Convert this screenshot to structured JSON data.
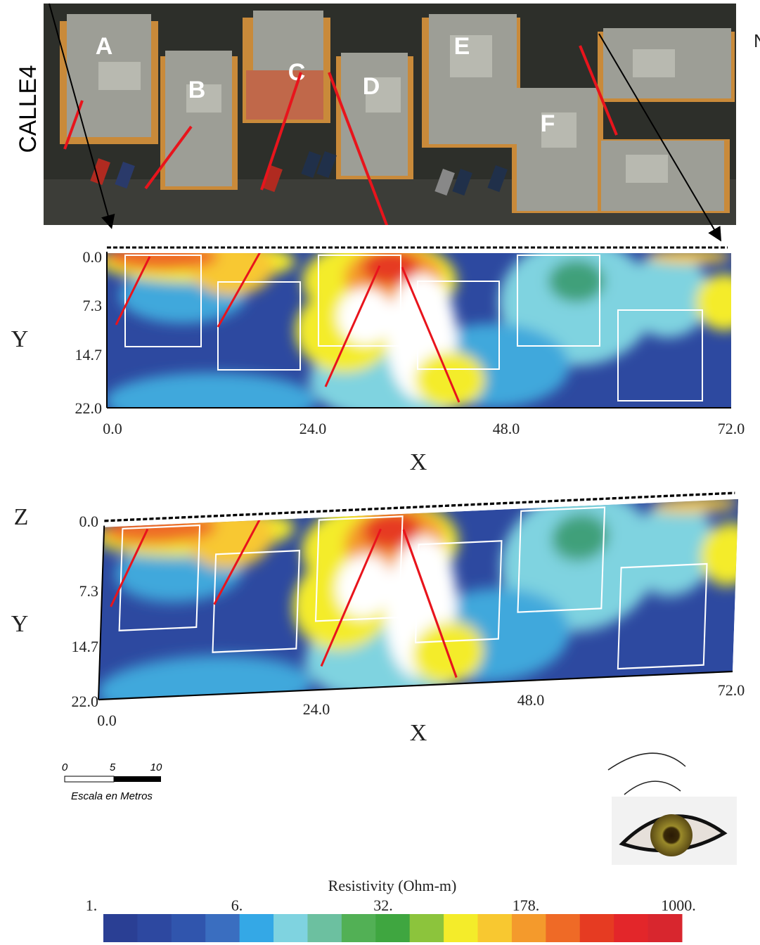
{
  "aerial": {
    "street_label": "CALLE4",
    "north_label": "N",
    "buildings": [
      "A",
      "B",
      "C",
      "D",
      "E",
      "F"
    ]
  },
  "section_top": {
    "y_axis_label": "Y",
    "x_axis_label": "X",
    "y_ticks": [
      "0.0",
      "7.3",
      "14.7",
      "22.0"
    ],
    "x_ticks": [
      "0.0",
      "24.0",
      "48.0",
      "72.0"
    ]
  },
  "section_bottom": {
    "z_axis_label": "Z",
    "y_axis_label": "Y",
    "x_axis_label": "X",
    "y_ticks": [
      "0.0",
      "7.3",
      "14.7",
      "22.0"
    ],
    "x_ticks": [
      "0.0",
      "24.0",
      "48.0",
      "72.0"
    ]
  },
  "scale_bar": {
    "ticks": [
      "0",
      "5",
      "10"
    ],
    "caption": "Escala en Metros"
  },
  "colorbar": {
    "title": "Resistivity (Ohm-m)",
    "labels": [
      "1.",
      "6.",
      "32.",
      "178.",
      "1000."
    ],
    "colors": [
      "#2a3f94",
      "#2d48a0",
      "#3055ad",
      "#3a6ec0",
      "#34a8e6",
      "#7fd3e0",
      "#6cc0a0",
      "#52b055",
      "#3fa640",
      "#8cc43c",
      "#f4ec2a",
      "#f8c830",
      "#f49a2c",
      "#ef6a26",
      "#e63b22",
      "#e3262a",
      "#d8262e"
    ]
  }
}
